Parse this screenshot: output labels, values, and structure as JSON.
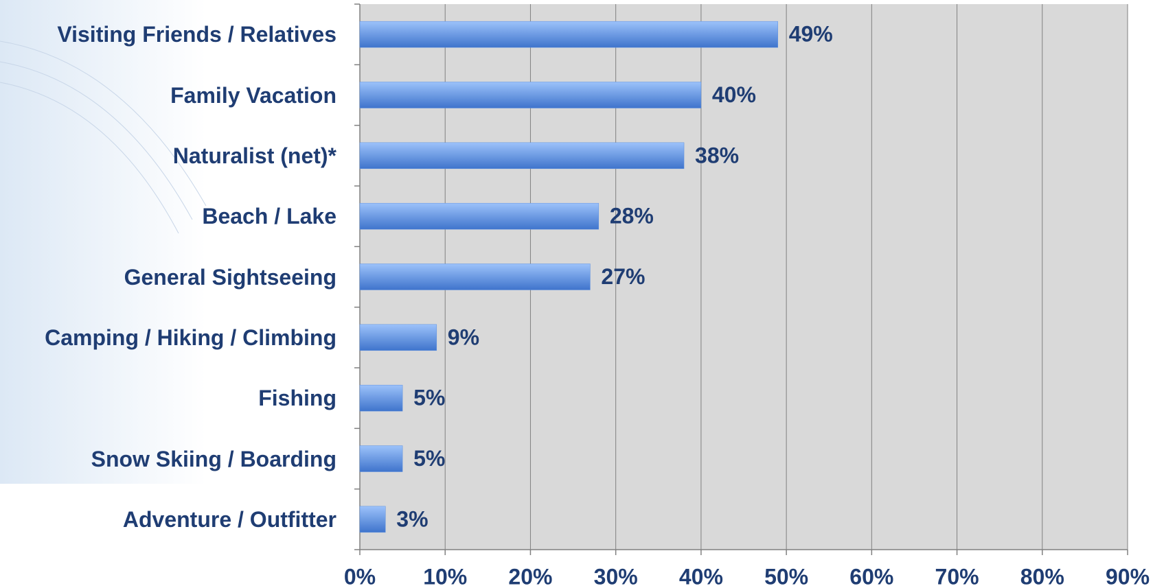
{
  "chart_data": {
    "type": "bar",
    "orientation": "horizontal",
    "categories": [
      "Visiting Friends / Relatives",
      "Family Vacation",
      "Naturalist (net)*",
      "Beach / Lake",
      "General Sightseeing",
      "Camping / Hiking / Climbing",
      "Fishing",
      "Snow Skiing / Boarding",
      "Adventure / Outfitter"
    ],
    "values": [
      49,
      40,
      38,
      28,
      27,
      9,
      5,
      5,
      3
    ],
    "value_labels": [
      "49%",
      "40%",
      "38%",
      "28%",
      "27%",
      "9%",
      "5%",
      "5%",
      "3%"
    ],
    "color": "#5b8fe0",
    "xlim": [
      0,
      90
    ],
    "xticks": [
      {
        "value": 0,
        "label": "0%"
      },
      {
        "value": 10,
        "label": "10%"
      },
      {
        "value": 20,
        "label": "20%"
      },
      {
        "value": 30,
        "label": "30%"
      },
      {
        "value": 40,
        "label": "40%"
      },
      {
        "value": 50,
        "label": "50%"
      },
      {
        "value": 60,
        "label": "60%"
      },
      {
        "value": 70,
        "label": "70%"
      },
      {
        "value": 80,
        "label": "80%"
      },
      {
        "value": 90,
        "label": "90%"
      }
    ],
    "grid": true
  }
}
